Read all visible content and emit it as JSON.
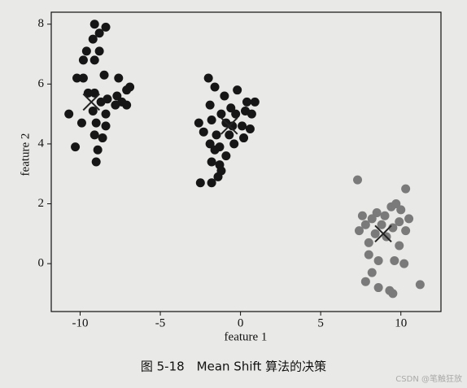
{
  "chart_data": {
    "type": "scatter",
    "caption": "图 5-18　Mean Shift 算法的决策",
    "watermark": "CSDN @笔触狂放",
    "x_label": "feature 1",
    "y_label": "feature 2",
    "xlim": [
      -11.8,
      12.5
    ],
    "ylim": [
      -1.6,
      8.4
    ],
    "xticks": [
      -10,
      -5,
      0,
      5,
      10
    ],
    "yticks": [
      0,
      2,
      4,
      6,
      8
    ],
    "series": [
      {
        "color": "#161616",
        "marker": "o",
        "x": [
          -9.1,
          -8.4,
          -8.8,
          -9.2,
          -9.6,
          -8.8,
          -9.8,
          -9.1,
          -10.2,
          -9.8,
          -8.5,
          -7.6,
          -6.9,
          -7.1,
          -9.5,
          -9.1,
          -7.7,
          -8.3,
          -8.7,
          -7.4,
          -10.7,
          -9.2,
          -7.8,
          -7.1,
          -8.4,
          -9.9,
          -9.0,
          -8.4,
          -9.1,
          -8.6,
          -10.3,
          -8.9,
          -9.0
        ],
        "y": [
          8.0,
          7.9,
          7.7,
          7.5,
          7.1,
          7.1,
          6.8,
          6.8,
          6.2,
          6.2,
          6.3,
          6.2,
          5.9,
          5.8,
          5.7,
          5.7,
          5.6,
          5.5,
          5.4,
          5.4,
          5.0,
          5.1,
          5.3,
          5.3,
          5.0,
          4.7,
          4.7,
          4.6,
          4.3,
          4.2,
          3.9,
          3.8,
          3.4
        ]
      },
      {
        "color": "#161616",
        "marker": "o",
        "x": [
          -2.0,
          -1.6,
          -0.2,
          -1.0,
          0.9,
          -1.9,
          0.4,
          -0.6,
          -0.3,
          0.3,
          -1.2,
          0.7,
          -2.6,
          -1.8,
          -0.9,
          -0.5,
          0.1,
          0.6,
          -2.3,
          -1.5,
          -0.7,
          0.2,
          -1.9,
          -1.3,
          -0.4,
          -1.6,
          -0.9,
          -1.8,
          -1.3,
          -1.2,
          -1.4,
          -2.5,
          -1.8
        ],
        "y": [
          6.2,
          5.9,
          5.8,
          5.6,
          5.4,
          5.3,
          5.4,
          5.2,
          5.0,
          5.1,
          5.0,
          5.0,
          4.7,
          4.8,
          4.7,
          4.6,
          4.6,
          4.5,
          4.4,
          4.3,
          4.3,
          4.2,
          4.0,
          3.9,
          4.0,
          3.8,
          3.6,
          3.4,
          3.3,
          3.1,
          2.9,
          2.7,
          2.7
        ]
      },
      {
        "color": "#7a7a7a",
        "marker": "o",
        "x": [
          7.3,
          10.3,
          9.7,
          9.4,
          10.0,
          8.5,
          7.6,
          9.0,
          10.5,
          9.9,
          8.2,
          7.8,
          8.8,
          9.5,
          7.4,
          10.3,
          8.4,
          9.1,
          8.0,
          9.9,
          8.0,
          8.6,
          9.6,
          10.2,
          8.2,
          11.2,
          7.8,
          8.6,
          9.3,
          9.5
        ],
        "y": [
          2.8,
          2.5,
          2.0,
          1.9,
          1.8,
          1.7,
          1.6,
          1.6,
          1.5,
          1.4,
          1.5,
          1.3,
          1.3,
          1.2,
          1.1,
          1.1,
          1.0,
          0.9,
          0.7,
          0.6,
          0.3,
          0.1,
          0.1,
          0.0,
          -0.3,
          -0.7,
          -0.6,
          -0.8,
          -0.9,
          -1.0
        ]
      },
      {
        "color": "#222222",
        "marker": "x",
        "x": [
          -9.3,
          -0.7,
          8.9
        ],
        "y": [
          5.4,
          4.6,
          1.0
        ]
      }
    ]
  }
}
